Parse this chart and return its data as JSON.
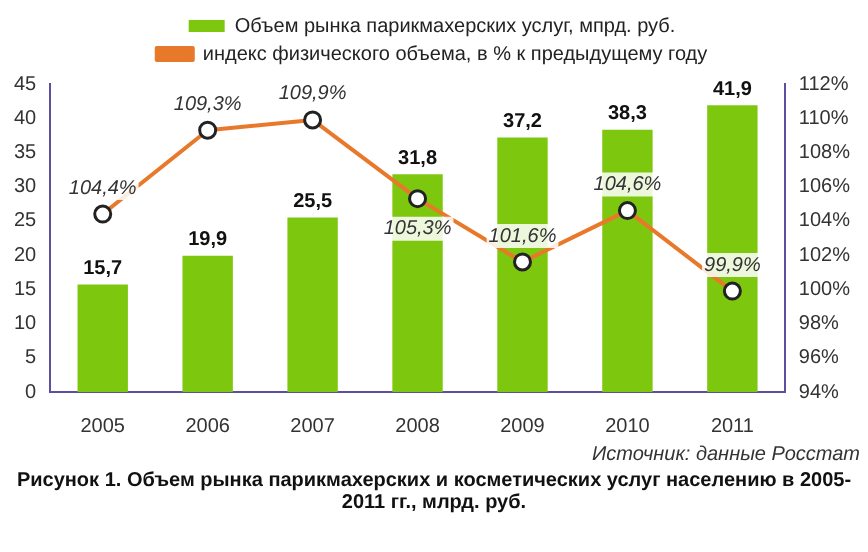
{
  "chart_data": {
    "type": "bar",
    "categories": [
      "2005",
      "2006",
      "2007",
      "2008",
      "2009",
      "2010",
      "2011"
    ],
    "series": [
      {
        "name": "Объем рынка парикмахерских услуг, мпрд. руб.",
        "color": "#7dc70f",
        "values": [
          15.7,
          19.9,
          25.5,
          31.8,
          37.2,
          38.3,
          41.9
        ],
        "value_labels": [
          "15,7",
          "19,9",
          "25,5",
          "31,8",
          "37,2",
          "38,3",
          "41,9"
        ]
      },
      {
        "name": "индекс физического объема, в % к предыдущему году",
        "type": "line",
        "axis": "y2",
        "color": "#e8782a",
        "marker": "circle",
        "values": [
          104.4,
          109.3,
          109.9,
          105.3,
          101.6,
          104.6,
          99.9
        ],
        "value_labels": [
          "104,4%",
          "109,3%",
          "109,9%",
          "105,3%",
          "101,6%",
          "104,6%",
          "99,9%"
        ]
      }
    ],
    "ylim": [
      0,
      45
    ],
    "yticks": [
      0,
      5,
      10,
      15,
      20,
      25,
      30,
      35,
      40,
      45
    ],
    "y2lim": [
      94,
      112
    ],
    "y2ticks": [
      {
        "value": 94,
        "label": "94%"
      },
      {
        "value": 96,
        "label": "96%"
      },
      {
        "value": 98,
        "label": "98%"
      },
      {
        "value": 100,
        "label": "100%"
      },
      {
        "value": 102,
        "label": "102%"
      },
      {
        "value": 104,
        "label": "104%"
      },
      {
        "value": 106,
        "label": "106%"
      },
      {
        "value": 108,
        "label": "108%"
      },
      {
        "value": 110,
        "label": "110%"
      },
      {
        "value": 112,
        "label": "112%"
      }
    ],
    "grid": false,
    "legend": "top",
    "annotations": [
      "Источник: данные Росстат",
      "Рисунок 1. Объем рынка парикмахерских и косметических услуг населению в 2005-2011 гг., млрд. руб."
    ]
  }
}
